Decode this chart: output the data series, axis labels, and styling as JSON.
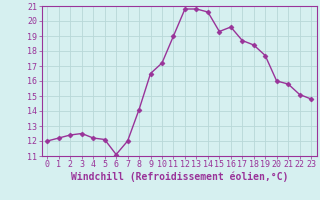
{
  "x": [
    0,
    1,
    2,
    3,
    4,
    5,
    6,
    7,
    8,
    9,
    10,
    11,
    12,
    13,
    14,
    15,
    16,
    17,
    18,
    19,
    20,
    21,
    22,
    23
  ],
  "y": [
    12.0,
    12.2,
    12.4,
    12.5,
    12.2,
    12.1,
    11.1,
    12.0,
    14.1,
    16.5,
    17.2,
    19.0,
    20.8,
    20.8,
    20.6,
    19.3,
    19.6,
    18.7,
    18.4,
    17.7,
    16.0,
    15.8,
    15.1,
    14.8
  ],
  "line_color": "#993399",
  "marker": "D",
  "markersize": 2.5,
  "linewidth": 1.0,
  "xlabel": "Windchill (Refroidissement éolien,°C)",
  "xlim": [
    -0.5,
    23.5
  ],
  "ylim": [
    11,
    21
  ],
  "yticks": [
    11,
    12,
    13,
    14,
    15,
    16,
    17,
    18,
    19,
    20,
    21
  ],
  "xticks": [
    0,
    1,
    2,
    3,
    4,
    5,
    6,
    7,
    8,
    9,
    10,
    11,
    12,
    13,
    14,
    15,
    16,
    17,
    18,
    19,
    20,
    21,
    22,
    23
  ],
  "tick_fontsize": 6.0,
  "xlabel_fontsize": 7.0,
  "background_color": "#d6f0f0",
  "grid_color": "#b8d8d8",
  "axis_color": "#993399",
  "border_color": "#993399"
}
